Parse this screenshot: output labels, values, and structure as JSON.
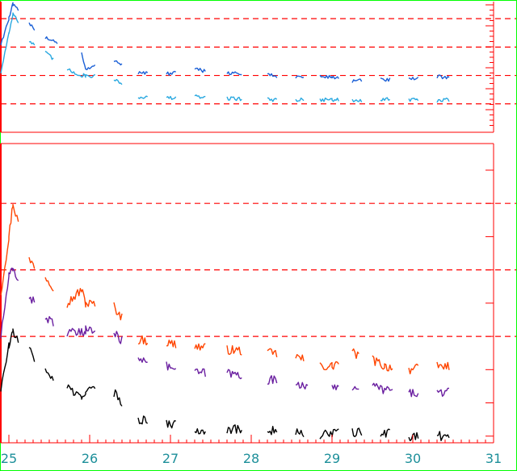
{
  "colors": {
    "frame": "#00ff00",
    "axes": "#ff0000",
    "reference_line": "#ff0000"
  },
  "chart_data": [
    {
      "type": "line",
      "panel": "top",
      "xlim": [
        24.9,
        31.0
      ],
      "y_axis": "unlabeled, minor ticks only on the right side",
      "reference_lines_y": [
        1,
        2,
        3,
        4
      ],
      "reference_line_style": "dashed",
      "ylim": [
        0,
        4.6
      ],
      "series": [
        {
          "color": "#1a5fd6",
          "x": [
            24.9,
            25.0,
            25.05,
            25.25,
            25.45,
            25.9,
            25.95,
            26.3,
            26.6,
            26.95,
            27.3,
            27.7,
            28.2,
            28.55,
            28.85,
            29.0,
            29.25,
            29.6,
            29.95,
            30.3,
            30.45
          ],
          "y": [
            3.1,
            4.0,
            4.5,
            3.8,
            3.35,
            2.8,
            2.2,
            2.55,
            2.1,
            2.05,
            2.2,
            2.1,
            2.0,
            1.95,
            1.95,
            1.95,
            1.8,
            1.85,
            1.85,
            1.95,
            1.95
          ]
        },
        {
          "color": "#29a8e0",
          "x": [
            24.9,
            25.0,
            25.05,
            25.25,
            25.45,
            25.72,
            25.9,
            25.95,
            26.3,
            26.6,
            26.95,
            27.3,
            27.7,
            28.2,
            28.55,
            28.85,
            29.0,
            29.25,
            29.6,
            29.95,
            30.3,
            30.45
          ],
          "y": [
            2.1,
            3.5,
            4.2,
            3.2,
            2.8,
            2.2,
            2.0,
            2.0,
            1.9,
            1.25,
            1.2,
            1.25,
            1.2,
            1.15,
            1.15,
            1.15,
            1.15,
            1.1,
            1.15,
            1.15,
            1.1,
            1.15
          ]
        }
      ]
    },
    {
      "type": "line",
      "panel": "bottom",
      "xlim": [
        24.9,
        31.0
      ],
      "xticks": [
        "25",
        "26",
        "27",
        "28",
        "29",
        "30",
        "31"
      ],
      "reference_lines_y": [
        1,
        2,
        3
      ],
      "reference_line_style": "dashed",
      "ylim": [
        -0.6,
        3.9
      ],
      "series": [
        {
          "color": "#ff4500",
          "x": [
            24.9,
            25.0,
            25.05,
            25.25,
            25.45,
            25.72,
            25.9,
            25.95,
            26.3,
            26.6,
            26.95,
            27.3,
            27.7,
            28.2,
            28.55,
            28.85,
            29.0,
            29.25,
            29.5,
            29.65,
            29.95,
            30.3,
            30.45
          ],
          "y": [
            1.65,
            2.5,
            3.0,
            2.15,
            1.9,
            1.5,
            1.7,
            1.5,
            1.45,
            0.95,
            0.9,
            0.85,
            0.8,
            0.75,
            0.7,
            0.55,
            0.55,
            0.75,
            0.65,
            0.55,
            0.5,
            0.55,
            0.55
          ]
        },
        {
          "color": "#6a1fa0",
          "x": [
            24.9,
            25.0,
            25.05,
            25.25,
            25.45,
            25.72,
            25.9,
            25.95,
            26.3,
            26.6,
            26.95,
            27.3,
            27.7,
            28.2,
            28.55,
            29.0,
            29.25,
            29.5,
            29.65,
            29.95,
            30.3,
            30.45
          ],
          "y": [
            1.0,
            1.9,
            2.0,
            1.6,
            1.3,
            1.05,
            1.05,
            1.1,
            1.05,
            0.7,
            0.55,
            0.45,
            0.45,
            0.35,
            0.3,
            0.2,
            0.25,
            0.25,
            0.2,
            0.15,
            0.15,
            0.15
          ]
        },
        {
          "color": "#000000",
          "x": [
            24.9,
            25.0,
            25.05,
            25.25,
            25.45,
            25.72,
            25.9,
            25.95,
            26.3,
            26.6,
            26.95,
            27.3,
            27.7,
            28.2,
            28.55,
            28.85,
            29.0,
            29.25,
            29.6,
            29.95,
            30.3,
            30.45
          ],
          "y": [
            0.2,
            0.85,
            1.05,
            0.8,
            0.45,
            0.25,
            0.05,
            0.2,
            0.15,
            -0.25,
            -0.3,
            -0.4,
            -0.4,
            -0.4,
            -0.45,
            -0.5,
            -0.45,
            -0.45,
            -0.45,
            -0.5,
            -0.5,
            -0.5
          ]
        }
      ]
    }
  ]
}
